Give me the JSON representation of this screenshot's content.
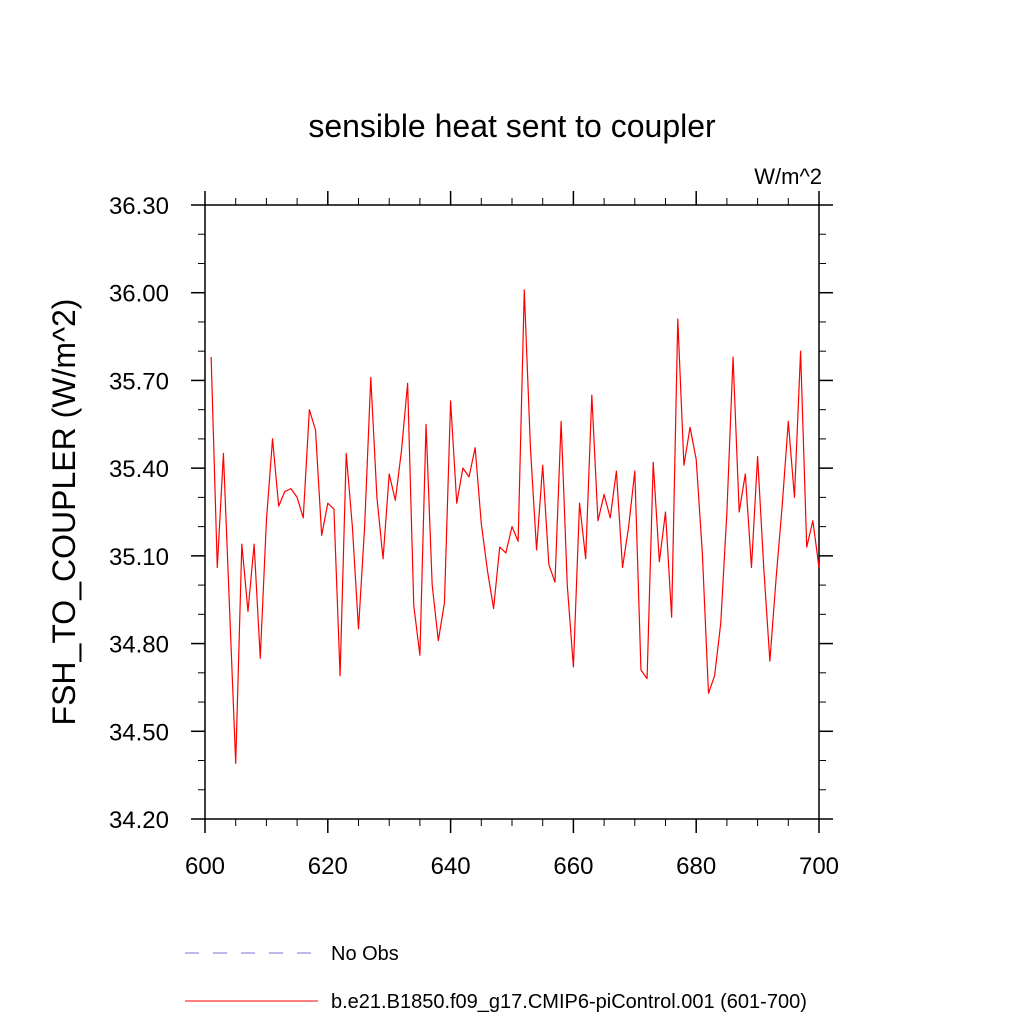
{
  "chart_data": {
    "type": "line",
    "title": "sensible heat sent to coupler",
    "units_label": "W/m^2",
    "ylabel": "FSH_TO_COUPLER  (W/m^2)",
    "xlabel": "",
    "xlim": [
      600,
      700
    ],
    "ylim": [
      34.2,
      36.3
    ],
    "xticks": [
      600,
      620,
      640,
      660,
      680,
      700
    ],
    "xtick_labels": [
      "600",
      "620",
      "640",
      "660",
      "680",
      "700"
    ],
    "yticks": [
      34.2,
      34.5,
      34.8,
      35.1,
      35.4,
      35.7,
      36.0,
      36.3
    ],
    "ytick_labels": [
      "34.20",
      "34.50",
      "34.80",
      "35.10",
      "35.40",
      "35.70",
      "36.00",
      "36.30"
    ],
    "grid": false,
    "legend_position": "bottom",
    "series": [
      {
        "name": "No Obs",
        "color": "#7b6fd6",
        "style": "dashed",
        "values": []
      },
      {
        "name": "b.e21.B1850.f09_g17.CMIP6-piControl.001 (601-700)",
        "color": "#ff0000",
        "style": "solid",
        "x": [
          601,
          602,
          603,
          604,
          605,
          606,
          607,
          608,
          609,
          610,
          611,
          612,
          613,
          614,
          615,
          616,
          617,
          618,
          619,
          620,
          621,
          622,
          623,
          624,
          625,
          626,
          627,
          628,
          629,
          630,
          631,
          632,
          633,
          634,
          635,
          636,
          637,
          638,
          639,
          640,
          641,
          642,
          643,
          644,
          645,
          646,
          647,
          648,
          649,
          650,
          651,
          652,
          653,
          654,
          655,
          656,
          657,
          658,
          659,
          660,
          661,
          662,
          663,
          664,
          665,
          666,
          667,
          668,
          669,
          670,
          671,
          672,
          673,
          674,
          675,
          676,
          677,
          678,
          679,
          680,
          681,
          682,
          683,
          684,
          685,
          686,
          687,
          688,
          689,
          690,
          691,
          692,
          693,
          694,
          695,
          696,
          697,
          698,
          699,
          700
        ],
        "values": [
          35.78,
          35.06,
          35.45,
          34.92,
          34.39,
          35.14,
          34.91,
          35.14,
          34.75,
          35.22,
          35.5,
          35.27,
          35.32,
          35.33,
          35.3,
          35.23,
          35.6,
          35.53,
          35.17,
          35.28,
          35.26,
          34.69,
          35.45,
          35.2,
          34.85,
          35.2,
          35.71,
          35.3,
          35.09,
          35.38,
          35.29,
          35.46,
          35.69,
          34.93,
          34.76,
          35.55,
          35.0,
          34.81,
          34.94,
          35.63,
          35.28,
          35.4,
          35.37,
          35.47,
          35.21,
          35.05,
          34.92,
          35.13,
          35.11,
          35.2,
          35.15,
          36.01,
          35.47,
          35.12,
          35.41,
          35.07,
          35.01,
          35.56,
          35.0,
          34.72,
          35.28,
          35.09,
          35.65,
          35.22,
          35.31,
          35.23,
          35.39,
          35.06,
          35.2,
          35.39,
          34.71,
          34.68,
          35.42,
          35.08,
          35.25,
          34.89,
          35.91,
          35.41,
          35.54,
          35.43,
          35.11,
          34.63,
          34.69,
          34.87,
          35.25,
          35.78,
          35.25,
          35.38,
          35.06,
          35.44,
          35.06,
          34.74,
          35.02,
          35.27,
          35.56,
          35.3,
          35.8,
          35.13,
          35.22,
          35.06
        ]
      }
    ]
  }
}
